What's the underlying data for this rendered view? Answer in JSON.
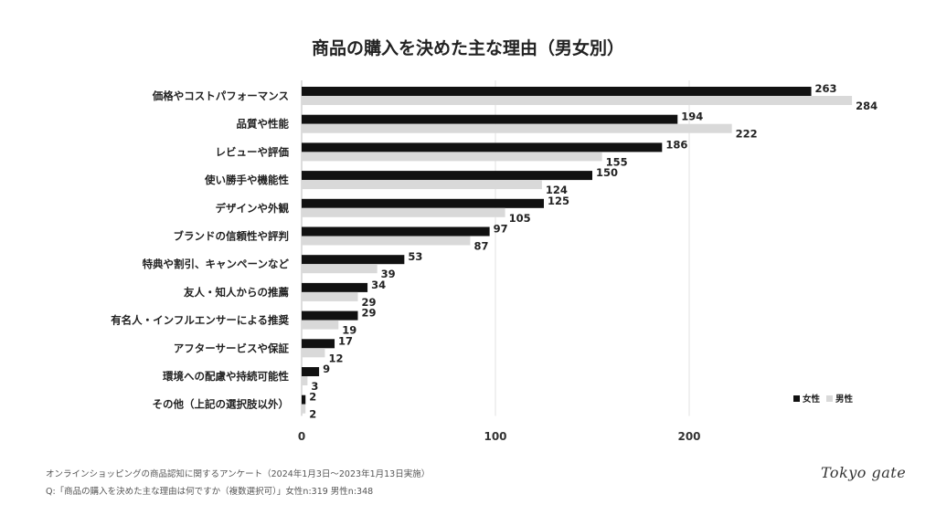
{
  "chart_data": {
    "type": "bar",
    "orientation": "horizontal",
    "title": "商品の購入を決めた主な理由（男女別）",
    "categories": [
      "価格やコストパフォーマンス",
      "品質や性能",
      "レビューや評価",
      "使い勝手や機能性",
      "デザインや外観",
      "ブランドの信頼性や評判",
      "特典や割引、キャンペーンなど",
      "友人・知人からの推薦",
      "有名人・インフルエンサーによる推奨",
      "アフターサービスや保証",
      "環境への配慮や持続可能性",
      "その他（上記の選択肢以外）"
    ],
    "series": [
      {
        "name": "女性",
        "color": "#111111",
        "values": [
          263,
          194,
          186,
          150,
          125,
          97,
          53,
          34,
          29,
          17,
          9,
          2
        ]
      },
      {
        "name": "男性",
        "color": "#d9d9d9",
        "values": [
          284,
          222,
          155,
          124,
          105,
          87,
          39,
          29,
          19,
          12,
          3,
          2
        ]
      }
    ],
    "xlim": [
      0,
      300
    ],
    "xticks": [
      0,
      100,
      200
    ],
    "grid": true,
    "legend": "bottom-right",
    "data_labels": true
  },
  "footer": {
    "line1": "オンラインショッピングの商品認知に関するアンケート（2024年1月3日〜2023年1月13日実施）",
    "line2": "Q:「商品の購入を決めた主な理由は何ですか（複数選択可）」女性n:319 男性n:348"
  },
  "logo": "Tokyo gate"
}
